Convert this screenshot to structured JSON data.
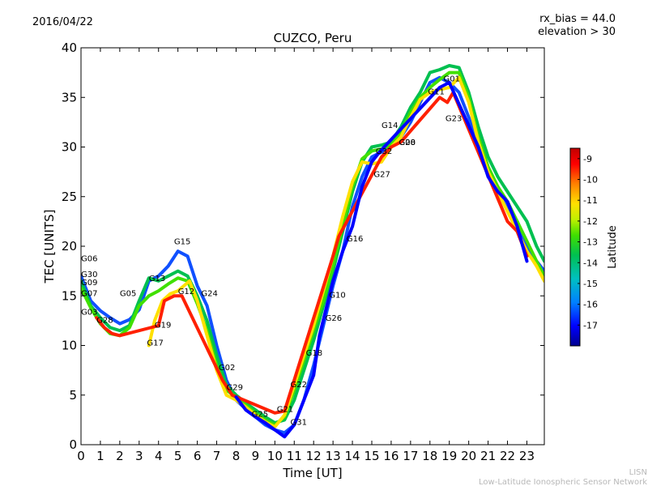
{
  "header": {
    "date": "2016/04/22",
    "rx_bias": "rx_bias = 44.0",
    "elevation": "elevation > 30"
  },
  "footer": {
    "line1": "LISN",
    "line2": "Low-Latitude Ionospheric Sensor Network"
  },
  "chart_data": {
    "type": "scatter",
    "title": "CUZCO, Peru",
    "xlabel": "Time [UT]",
    "ylabel": "TEC [UNITS]",
    "xlim": [
      0,
      23.9
    ],
    "ylim": [
      0,
      40
    ],
    "xticks": [
      "0",
      "1",
      "2",
      "3",
      "4",
      "5",
      "6",
      "7",
      "8",
      "9",
      "10",
      "11",
      "12",
      "13",
      "14",
      "15",
      "16",
      "17",
      "18",
      "19",
      "20",
      "21",
      "22",
      "23"
    ],
    "yticks": [
      "0",
      "5",
      "10",
      "15",
      "20",
      "25",
      "30",
      "35",
      "40"
    ],
    "colorbar": {
      "label": "Latitude",
      "range": [
        -18,
        -8.5
      ],
      "ticks": [
        "-9",
        "-10",
        "-11",
        "-12",
        "-13",
        "-14",
        "-15",
        "-16",
        "-17"
      ],
      "tick_values": [
        -9,
        -10,
        -11,
        -12,
        -13,
        -14,
        -15,
        -16,
        -17
      ],
      "colors": [
        "#00008f",
        "#0000ff",
        "#0080ff",
        "#00c0c0",
        "#00c050",
        "#40e000",
        "#c0f000",
        "#ffe000",
        "#ff8000",
        "#ff0000",
        "#c00000"
      ]
    },
    "series": [
      {
        "color": "#1050ff",
        "points": [
          [
            0,
            17.0
          ],
          [
            0.5,
            14.5
          ],
          [
            1.0,
            13.5
          ],
          [
            1.5,
            12.8
          ],
          [
            2.0,
            12.2
          ],
          [
            2.5,
            12.6
          ],
          [
            3.0,
            13.6
          ],
          [
            3.5,
            16.5
          ],
          [
            4.0,
            17.0
          ],
          [
            4.5,
            18.0
          ],
          [
            5.0,
            19.5
          ],
          [
            5.5,
            19.0
          ],
          [
            6.0,
            16.0
          ],
          [
            6.5,
            14.0
          ],
          [
            7.0,
            10.0
          ],
          [
            7.5,
            6.5
          ],
          [
            8.0,
            4.5
          ],
          [
            8.5,
            3.6
          ],
          [
            9.0,
            2.8
          ],
          [
            9.5,
            2.0
          ],
          [
            10.0,
            1.5
          ],
          [
            10.5,
            1.2
          ],
          [
            11.0,
            2.0
          ],
          [
            11.5,
            4.5
          ],
          [
            12.0,
            8.0
          ],
          [
            12.5,
            12.0
          ],
          [
            13.0,
            16.0
          ],
          [
            13.5,
            19.5
          ],
          [
            14.0,
            24.0
          ],
          [
            14.5,
            27.0
          ],
          [
            15.0,
            29.0
          ],
          [
            15.5,
            29.5
          ],
          [
            16.0,
            30.0
          ],
          [
            16.5,
            31.0
          ],
          [
            17.0,
            32.5
          ],
          [
            17.5,
            34.5
          ],
          [
            18.0,
            36.5
          ],
          [
            18.5,
            37.0
          ],
          [
            19.0,
            36.5
          ],
          [
            19.5,
            35.5
          ],
          [
            20.0,
            33.0
          ],
          [
            20.5,
            30.0
          ],
          [
            21.0,
            27.5
          ],
          [
            21.5,
            25.5
          ],
          [
            22.0,
            24.0
          ],
          [
            22.5,
            22.5
          ],
          [
            23.0,
            20.0
          ],
          [
            23.5,
            18.5
          ],
          [
            23.9,
            17.5
          ]
        ]
      },
      {
        "color": "#00c050",
        "points": [
          [
            0,
            16.5
          ],
          [
            0.5,
            14.0
          ],
          [
            1.0,
            12.8
          ],
          [
            1.5,
            11.8
          ],
          [
            2.0,
            11.5
          ],
          [
            2.5,
            12.0
          ],
          [
            3.0,
            14.5
          ],
          [
            3.5,
            16.8
          ],
          [
            4.0,
            16.5
          ],
          [
            4.5,
            17.0
          ],
          [
            5.0,
            17.5
          ],
          [
            5.5,
            17.0
          ],
          [
            6.0,
            15.0
          ],
          [
            6.5,
            12.5
          ],
          [
            7.0,
            9.0
          ],
          [
            7.5,
            6.0
          ],
          [
            8.0,
            5.0
          ],
          [
            8.5,
            4.2
          ],
          [
            9.0,
            3.5
          ],
          [
            9.5,
            2.8
          ],
          [
            10.0,
            2.2
          ],
          [
            10.5,
            2.5
          ],
          [
            11.0,
            4.5
          ],
          [
            11.5,
            7.5
          ],
          [
            12.0,
            10.5
          ],
          [
            12.5,
            14.0
          ],
          [
            13.0,
            17.5
          ],
          [
            13.5,
            21.5
          ],
          [
            14.0,
            25.5
          ],
          [
            14.5,
            28.5
          ],
          [
            15.0,
            30.0
          ],
          [
            15.5,
            30.2
          ],
          [
            16.0,
            30.5
          ],
          [
            16.5,
            32.0
          ],
          [
            17.0,
            34.0
          ],
          [
            17.5,
            35.5
          ],
          [
            18.0,
            37.5
          ],
          [
            18.5,
            37.8
          ],
          [
            19.0,
            38.2
          ],
          [
            19.5,
            38.0
          ],
          [
            20.0,
            35.5
          ],
          [
            20.5,
            32.0
          ],
          [
            21.0,
            29.0
          ],
          [
            21.5,
            27.0
          ],
          [
            22.0,
            25.5
          ],
          [
            22.5,
            24.0
          ],
          [
            23.0,
            22.5
          ],
          [
            23.5,
            20.0
          ],
          [
            23.9,
            18.5
          ]
        ]
      },
      {
        "color": "#40e000",
        "points": [
          [
            0,
            15.8
          ],
          [
            0.5,
            13.8
          ],
          [
            1.0,
            12.2
          ],
          [
            1.5,
            11.2
          ],
          [
            2.0,
            11.0
          ],
          [
            2.5,
            11.8
          ],
          [
            3.0,
            14.0
          ],
          [
            3.5,
            15.0
          ],
          [
            4.0,
            15.5
          ],
          [
            4.5,
            16.2
          ],
          [
            5.0,
            16.8
          ],
          [
            5.5,
            16.5
          ],
          [
            6.0,
            14.2
          ],
          [
            6.5,
            11.5
          ],
          [
            7.0,
            8.0
          ],
          [
            7.5,
            5.5
          ],
          [
            8.0,
            4.8
          ],
          [
            8.5,
            4.0
          ],
          [
            9.0,
            3.2
          ],
          [
            9.5,
            2.5
          ],
          [
            10.0,
            2.0
          ],
          [
            10.5,
            2.8
          ],
          [
            11.0,
            5.5
          ],
          [
            11.5,
            8.5
          ],
          [
            12.0,
            11.5
          ],
          [
            12.5,
            14.5
          ],
          [
            13.0,
            18.0
          ],
          [
            13.5,
            22.0
          ],
          [
            14.0,
            26.0
          ],
          [
            14.5,
            28.8
          ],
          [
            15.0,
            29.6
          ],
          [
            15.5,
            29.8
          ],
          [
            16.0,
            30.2
          ],
          [
            16.5,
            31.5
          ],
          [
            17.0,
            33.5
          ],
          [
            17.5,
            35.0
          ],
          [
            18.0,
            36.0
          ],
          [
            18.5,
            36.8
          ],
          [
            19.0,
            37.5
          ],
          [
            19.5,
            37.5
          ],
          [
            20.0,
            35.0
          ],
          [
            20.5,
            31.0
          ],
          [
            21.0,
            28.0
          ],
          [
            21.5,
            26.0
          ],
          [
            22.0,
            24.5
          ],
          [
            22.5,
            22.5
          ],
          [
            23.0,
            20.5
          ],
          [
            23.5,
            18.5
          ],
          [
            23.9,
            17.0
          ]
        ]
      },
      {
        "color": "#ffe000",
        "points": [
          [
            3.5,
            10.0
          ],
          [
            3.8,
            12.5
          ],
          [
            4.2,
            14.5
          ],
          [
            4.6,
            15.2
          ],
          [
            5.0,
            15.5
          ],
          [
            5.6,
            16.5
          ],
          [
            6.0,
            14.5
          ],
          [
            6.5,
            11.0
          ],
          [
            7.0,
            7.5
          ],
          [
            7.5,
            5.0
          ],
          [
            8.0,
            4.5
          ],
          [
            8.5,
            3.8
          ],
          [
            9.0,
            3.0
          ],
          [
            9.5,
            2.3
          ],
          [
            10.0,
            1.8
          ],
          [
            10.5,
            3.0
          ],
          [
            11.0,
            6.0
          ],
          [
            11.5,
            9.0
          ],
          [
            12.0,
            12.0
          ],
          [
            12.5,
            15.5
          ],
          [
            13.0,
            19.0
          ],
          [
            13.5,
            23.0
          ],
          [
            14.0,
            26.5
          ],
          [
            14.5,
            28.5
          ],
          [
            15.0,
            28.3
          ],
          [
            15.5,
            28.5
          ],
          [
            16.0,
            30.0
          ],
          [
            16.5,
            31.0
          ],
          [
            17.0,
            33.0
          ],
          [
            17.5,
            34.8
          ],
          [
            18.0,
            35.5
          ],
          [
            18.5,
            35.8
          ],
          [
            19.0,
            36.0
          ],
          [
            19.5,
            37.0
          ],
          [
            20.0,
            34.5
          ],
          [
            20.5,
            30.5
          ],
          [
            21.0,
            27.5
          ],
          [
            21.5,
            25.5
          ],
          [
            22.0,
            23.5
          ],
          [
            22.5,
            21.5
          ],
          [
            23.0,
            19.5
          ],
          [
            23.5,
            18.0
          ],
          [
            23.9,
            16.5
          ]
        ]
      },
      {
        "color": "#ff2000",
        "points": [
          [
            0.8,
            12.8
          ],
          [
            1.2,
            11.8
          ],
          [
            1.6,
            11.2
          ],
          [
            2.0,
            11.0
          ],
          [
            4.0,
            12.0
          ],
          [
            4.3,
            14.5
          ],
          [
            4.8,
            15.0
          ],
          [
            5.2,
            15.0
          ],
          [
            7.3,
            6.5
          ],
          [
            7.8,
            5.0
          ],
          [
            10.0,
            3.2
          ],
          [
            10.5,
            3.4
          ],
          [
            13.0,
            19.0
          ],
          [
            13.3,
            21.0
          ],
          [
            15.5,
            29.0
          ],
          [
            16.0,
            30.0
          ],
          [
            16.5,
            30.5
          ],
          [
            18.5,
            35.0
          ],
          [
            18.9,
            34.5
          ],
          [
            19.2,
            35.5
          ],
          [
            22.0,
            22.5
          ],
          [
            22.5,
            21.5
          ],
          [
            23.0,
            19.0
          ]
        ]
      },
      {
        "color": "#0000ff",
        "points": [
          [
            8.0,
            4.8
          ],
          [
            8.5,
            3.5
          ],
          [
            9.0,
            2.8
          ],
          [
            9.5,
            2.2
          ],
          [
            10.0,
            1.5
          ],
          [
            10.5,
            0.8
          ],
          [
            11.0,
            2.0
          ],
          [
            11.5,
            4.5
          ],
          [
            12.0,
            7.0
          ],
          [
            12.3,
            11.0
          ],
          [
            13.0,
            16.5
          ],
          [
            13.5,
            19.5
          ],
          [
            14.0,
            22.0
          ],
          [
            14.5,
            26.0
          ],
          [
            15.0,
            28.5
          ],
          [
            15.4,
            29.5
          ],
          [
            18.5,
            36.0
          ],
          [
            19.0,
            36.5
          ],
          [
            20.5,
            30.0
          ],
          [
            21.0,
            27.0
          ],
          [
            21.5,
            25.5
          ],
          [
            22.0,
            24.5
          ],
          [
            22.5,
            22.0
          ],
          [
            23.0,
            18.5
          ]
        ]
      }
    ],
    "sat_labels": [
      {
        "name": "G06",
        "x": 0.0,
        "y": 18.5
      },
      {
        "name": "G30",
        "x": 0.0,
        "y": 16.9
      },
      {
        "name": "G09",
        "x": 0.0,
        "y": 16.1
      },
      {
        "name": "G07",
        "x": 0.0,
        "y": 15.0
      },
      {
        "name": "G03",
        "x": 0.0,
        "y": 13.1
      },
      {
        "name": "G28",
        "x": 0.8,
        "y": 12.3
      },
      {
        "name": "G05",
        "x": 2.0,
        "y": 15.0
      },
      {
        "name": "G13",
        "x": 3.5,
        "y": 16.5
      },
      {
        "name": "G15",
        "x": 4.8,
        "y": 20.2
      },
      {
        "name": "G12",
        "x": 5.0,
        "y": 15.2
      },
      {
        "name": "G24",
        "x": 6.2,
        "y": 15.0
      },
      {
        "name": "G19",
        "x": 3.8,
        "y": 11.8
      },
      {
        "name": "G17",
        "x": 3.4,
        "y": 10.0
      },
      {
        "name": "G02",
        "x": 7.1,
        "y": 7.5
      },
      {
        "name": "G29",
        "x": 7.5,
        "y": 5.5
      },
      {
        "name": "G25",
        "x": 8.8,
        "y": 2.8
      },
      {
        "name": "G21",
        "x": 10.1,
        "y": 3.3
      },
      {
        "name": "G31",
        "x": 10.8,
        "y": 2.0
      },
      {
        "name": "G22",
        "x": 10.8,
        "y": 5.8
      },
      {
        "name": "G18",
        "x": 11.6,
        "y": 9.0
      },
      {
        "name": "G26",
        "x": 12.6,
        "y": 12.5
      },
      {
        "name": "G10",
        "x": 12.8,
        "y": 14.8
      },
      {
        "name": "G16",
        "x": 13.7,
        "y": 20.5
      },
      {
        "name": "G27",
        "x": 15.1,
        "y": 27.0
      },
      {
        "name": "G32",
        "x": 15.2,
        "y": 29.3
      },
      {
        "name": "G14",
        "x": 15.5,
        "y": 31.9
      },
      {
        "name": "G08",
        "x": 16.4,
        "y": 30.2
      },
      {
        "name": "G20",
        "x": 16.4,
        "y": 30.2
      },
      {
        "name": "G11",
        "x": 17.9,
        "y": 35.3
      },
      {
        "name": "G01",
        "x": 18.7,
        "y": 36.6
      },
      {
        "name": "G23",
        "x": 18.8,
        "y": 32.6
      }
    ]
  }
}
